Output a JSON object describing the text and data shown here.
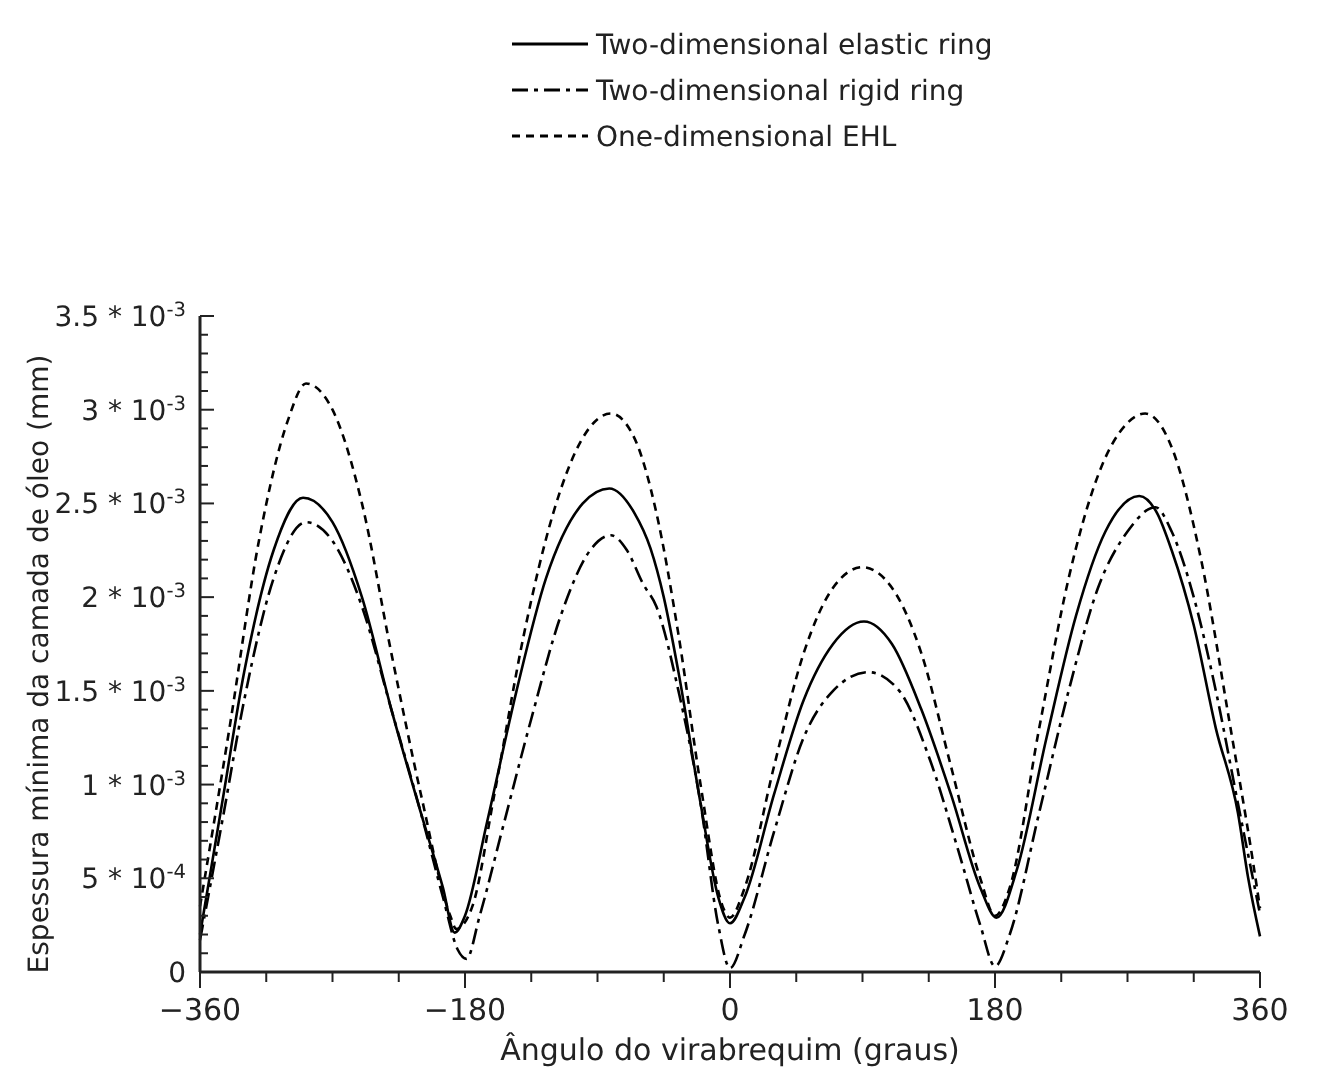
{
  "chart_data": {
    "type": "line",
    "xlabel": "Ângulo do virabrequim (graus)",
    "ylabel": "Espessura mínima da camada de óleo (mm)",
    "legend": "top",
    "xlim": [
      -360,
      360
    ],
    "ylim": [
      0,
      0.0035
    ],
    "xticks": [
      -360,
      {
        "value": -315,
        "label": null
      },
      {
        "value": -270,
        "label": null
      },
      {
        "value": -225,
        "label": null
      },
      -180,
      {
        "value": -135,
        "label": null
      },
      {
        "value": -90,
        "label": null
      },
      {
        "value": -45,
        "label": null
      },
      0,
      {
        "value": 45,
        "label": null
      },
      {
        "value": 90,
        "label": null
      },
      {
        "value": 135,
        "label": null
      },
      180,
      {
        "value": 225,
        "label": null
      },
      {
        "value": 270,
        "label": null
      },
      {
        "value": 315,
        "label": null
      },
      360
    ],
    "yticks": [
      0,
      {
        "value": 0.0001,
        "label": null
      },
      {
        "value": 0.0002,
        "label": null
      },
      {
        "value": 0.0003,
        "label": null
      },
      {
        "value": 0.0004,
        "label": null
      },
      {
        "value": 0.0005,
        "label": "5 * 10$^{-4}$"
      },
      {
        "value": 0.0006,
        "label": null
      },
      {
        "value": 0.0007,
        "label": null
      },
      {
        "value": 0.0008,
        "label": null
      },
      {
        "value": 0.0009,
        "label": null
      },
      {
        "value": 0.001,
        "label": "1 * 10$^{-3}$"
      },
      {
        "value": 0.0011,
        "label": null
      },
      {
        "value": 0.0012,
        "label": null
      },
      {
        "value": 0.0013,
        "label": null
      },
      {
        "value": 0.0014,
        "label": null
      },
      {
        "value": 0.0015,
        "label": "1.5 * 10$^{-3}$"
      },
      {
        "value": 0.0016,
        "label": null
      },
      {
        "value": 0.0017,
        "label": null
      },
      {
        "value": 0.0018,
        "label": null
      },
      {
        "value": 0.0019,
        "label": null
      },
      {
        "value": 0.002,
        "label": "2 * 10$^{-3}$"
      },
      {
        "value": 0.0021,
        "label": null
      },
      {
        "value": 0.0022,
        "label": null
      },
      {
        "value": 0.0023,
        "label": null
      },
      {
        "value": 0.0024,
        "label": null
      },
      {
        "value": 0.0025,
        "label": "2.5 * 10$^{-3}$"
      },
      {
        "value": 0.0026,
        "label": null
      },
      {
        "value": 0.0027,
        "label": null
      },
      {
        "value": 0.0028,
        "label": null
      },
      {
        "value": 0.0029,
        "label": null
      },
      {
        "value": 0.003,
        "label": "3 * 10$^{-3}$"
      },
      {
        "value": 0.0031,
        "label": null
      },
      {
        "value": 0.0032,
        "label": null
      },
      {
        "value": 0.0033,
        "label": null
      },
      {
        "value": 0.0034,
        "label": null
      },
      {
        "value": 0.0035,
        "label": "3.5 * 10$^{-3}$"
      }
    ],
    "series": [
      {
        "name": "Two-dimensional elastic ring",
        "color": "#000000",
        "line_style": "solid",
        "x": [
          -360,
          -345,
          -330,
          -310,
          -290,
          -270,
          -250,
          -230,
          -210,
          -195,
          -187,
          -180,
          -165,
          -145,
          -125,
          -100,
          -82,
          -65,
          -54,
          -45,
          -35,
          -20,
          -8,
          0,
          10,
          30,
          50,
          70,
          91,
          110,
          130,
          150,
          170,
          181,
          195,
          215,
          235,
          255,
          278,
          290,
          300,
          315,
          330,
          345,
          352,
          360
        ],
        "values": [
          0.0002,
          0.0009,
          0.0016,
          0.00225,
          0.00253,
          0.0024,
          0.002,
          0.0014,
          0.00085,
          0.00045,
          0.00021,
          0.0003,
          0.0008,
          0.0015,
          0.0021,
          0.0025,
          0.00258,
          0.00245,
          0.00226,
          0.002,
          0.0016,
          0.0009,
          0.0004,
          0.00026,
          0.0004,
          0.00095,
          0.00145,
          0.00175,
          0.00187,
          0.00175,
          0.0014,
          0.00095,
          0.00045,
          0.00029,
          0.00055,
          0.00125,
          0.0019,
          0.00235,
          0.00254,
          0.00245,
          0.00225,
          0.00185,
          0.0013,
          0.00085,
          0.0005,
          0.00019
        ]
      },
      {
        "name": "Two-dimensional rigid ring",
        "color": "#000000",
        "line_style": "dashdot",
        "x": [
          -360,
          -345,
          -330,
          -310,
          -288,
          -270,
          -250,
          -230,
          -210,
          -195,
          -185,
          -179,
          -170,
          -155,
          -135,
          -115,
          -95,
          -81,
          -70,
          -59,
          -50,
          -35,
          -20,
          -8,
          0,
          10,
          30,
          50,
          70,
          94,
          115,
          135,
          155,
          170,
          180,
          190,
          210,
          230,
          250,
          270,
          289,
          300,
          315,
          330,
          345,
          360
        ],
        "values": [
          0.00017,
          0.0008,
          0.00145,
          0.0021,
          0.0024,
          0.0023,
          0.00195,
          0.0014,
          0.00085,
          0.0004,
          0.00012,
          7e-05,
          0.0003,
          0.00075,
          0.00135,
          0.0019,
          0.00225,
          0.00233,
          0.00225,
          0.00207,
          0.00195,
          0.0015,
          0.0009,
          0.00025,
          2e-05,
          0.0002,
          0.00075,
          0.00125,
          0.0015,
          0.0016,
          0.0015,
          0.00115,
          0.00065,
          0.00025,
          3e-05,
          0.0002,
          0.00085,
          0.0015,
          0.00205,
          0.00235,
          0.00248,
          0.00235,
          0.002,
          0.0015,
          0.0009,
          0.00031
        ]
      },
      {
        "name": "One-dimensional EHL",
        "color": "#000000",
        "line_style": "dashed",
        "x": [
          -360,
          -340,
          -320,
          -300,
          -288,
          -270,
          -250,
          -230,
          -210,
          -190,
          -186,
          -175,
          -160,
          -140,
          -120,
          -100,
          -81,
          -65,
          -50,
          -35,
          -20,
          -5,
          0,
          10,
          30,
          50,
          70,
          90,
          110,
          130,
          150,
          170,
          180,
          190,
          210,
          230,
          250,
          270,
          282,
          300,
          320,
          340,
          355,
          360
        ],
        "values": [
          0.00035,
          0.0013,
          0.0023,
          0.00295,
          0.00314,
          0.003,
          0.0025,
          0.0017,
          0.00095,
          0.0003,
          0.00023,
          0.00035,
          0.00095,
          0.0018,
          0.00245,
          0.00285,
          0.00298,
          0.00285,
          0.00245,
          0.0018,
          0.001,
          0.00035,
          0.00029,
          0.00045,
          0.0011,
          0.0017,
          0.00205,
          0.00216,
          0.00205,
          0.0017,
          0.0011,
          0.0005,
          0.0003,
          0.00045,
          0.0013,
          0.0021,
          0.00265,
          0.00293,
          0.00298,
          0.0028,
          0.0022,
          0.0013,
          0.0006,
          0.00034
        ]
      }
    ]
  }
}
